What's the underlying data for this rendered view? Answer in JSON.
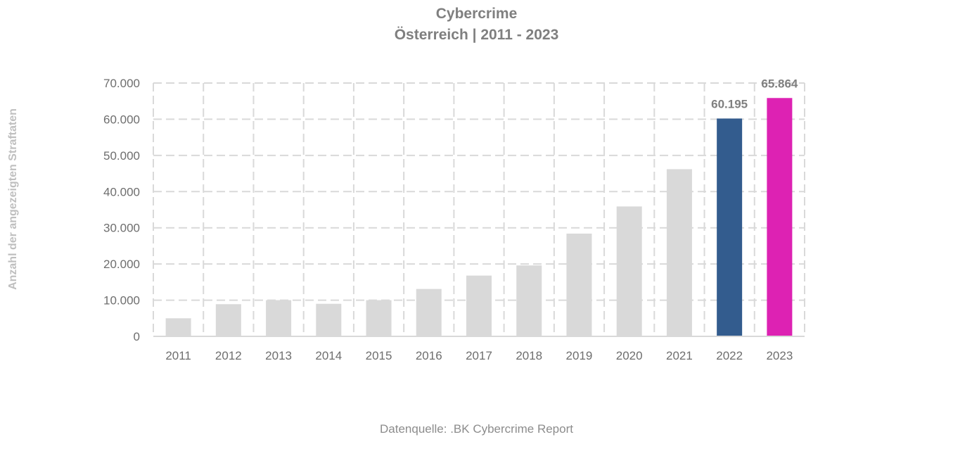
{
  "title": "Cybercrime",
  "subtitle": "Österreich | 2011 - 2023",
  "source": "Datenquelle: .BK Cybercrime Report",
  "chart_data": {
    "type": "bar",
    "title": "Cybercrime",
    "subtitle": "Österreich | 2011 - 2023",
    "xlabel": "",
    "ylabel": "Anzahl der angezeigten Straftaten",
    "categories": [
      "2011",
      "2012",
      "2013",
      "2014",
      "2015",
      "2016",
      "2017",
      "2018",
      "2019",
      "2020",
      "2021",
      "2022",
      "2023"
    ],
    "values": [
      5000,
      8900,
      10000,
      9000,
      10000,
      13100,
      16800,
      19600,
      28400,
      35900,
      46200,
      60195,
      65864
    ],
    "bar_colors": [
      "#d9d9d9",
      "#d9d9d9",
      "#d9d9d9",
      "#d9d9d9",
      "#d9d9d9",
      "#d9d9d9",
      "#d9d9d9",
      "#d9d9d9",
      "#d9d9d9",
      "#d9d9d9",
      "#d9d9d9",
      "#335c8e",
      "#dd22b3"
    ],
    "data_labels": {
      "2022": "60.195",
      "2023": "65.864"
    },
    "ylim": [
      0,
      70000
    ],
    "yticks": [
      0,
      10000,
      20000,
      30000,
      40000,
      50000,
      60000,
      70000
    ],
    "ytick_labels": [
      "0",
      "10.000",
      "20.000",
      "30.000",
      "40.000",
      "50.000",
      "60.000",
      "70.000"
    ],
    "grid": "dashed, horizontal and vertical",
    "legend": "none"
  }
}
